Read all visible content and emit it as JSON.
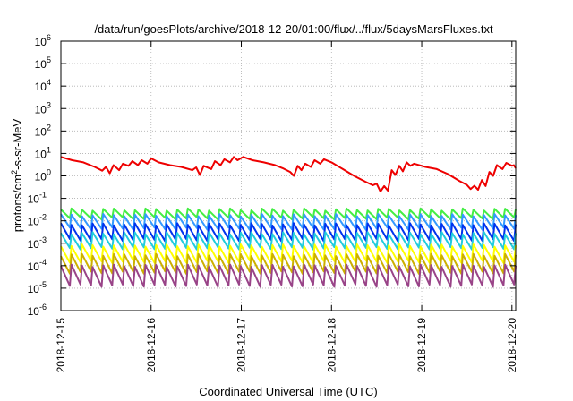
{
  "chart_data": {
    "type": "line",
    "title": "/data/run/goesPlots/archive/2018-12-20/01:00/flux/../flux/5daysMarsFluxes.txt",
    "xlabel": "Coordinated Universal Time (UTC)",
    "ylabel_parts": [
      "protons/cm",
      "2",
      "-s-sr-MeV"
    ],
    "yscale": "log",
    "ylim": [
      1e-06,
      1000000.0
    ],
    "y_ticks": [
      {
        "base": "10",
        "exp": "-6",
        "value": 1e-06
      },
      {
        "base": "10",
        "exp": "-5",
        "value": 1e-05
      },
      {
        "base": "10",
        "exp": "-4",
        "value": 0.0001
      },
      {
        "base": "10",
        "exp": "-3",
        "value": 0.001
      },
      {
        "base": "10",
        "exp": "-2",
        "value": 0.01
      },
      {
        "base": "10",
        "exp": "-1",
        "value": 0.1
      },
      {
        "base": "10",
        "exp": "0",
        "value": 1
      },
      {
        "base": "10",
        "exp": "1",
        "value": 10
      },
      {
        "base": "10",
        "exp": "2",
        "value": 100
      },
      {
        "base": "10",
        "exp": "3",
        "value": 1000
      },
      {
        "base": "10",
        "exp": "4",
        "value": 10000
      },
      {
        "base": "10",
        "exp": "5",
        "value": 100000
      },
      {
        "base": "10",
        "exp": "6",
        "value": 1000000
      }
    ],
    "xlim": [
      "2018-12-15",
      "2018-12-20 01:00"
    ],
    "x_ticks": [
      "2018-12-15",
      "2018-12-16",
      "2018-12-17",
      "2018-12-18",
      "2018-12-19",
      "2018-12-20"
    ],
    "grid": true,
    "series": [
      {
        "color": "#ee0000",
        "points": [
          [
            "2018-12-15 00:00",
            7
          ],
          [
            "2018-12-15 03:00",
            5
          ],
          [
            "2018-12-15 06:00",
            4
          ],
          [
            "2018-12-15 09:00",
            2.5
          ],
          [
            "2018-12-15 11:00",
            1.7
          ],
          [
            "2018-12-15 12:00",
            2.5
          ],
          [
            "2018-12-15 13:00",
            1.3
          ],
          [
            "2018-12-15 14:00",
            3
          ],
          [
            "2018-12-15 15:30",
            1.8
          ],
          [
            "2018-12-15 16:30",
            3.5
          ],
          [
            "2018-12-15 18:00",
            2.8
          ],
          [
            "2018-12-15 19:00",
            4.5
          ],
          [
            "2018-12-15 20:30",
            3
          ],
          [
            "2018-12-15 21:30",
            5
          ],
          [
            "2018-12-15 23:00",
            3.5
          ],
          [
            "2018-12-16 00:00",
            6
          ],
          [
            "2018-12-16 02:00",
            4
          ],
          [
            "2018-12-16 05:00",
            3
          ],
          [
            "2018-12-16 08:00",
            2.5
          ],
          [
            "2018-12-16 11:00",
            1.8
          ],
          [
            "2018-12-16 12:00",
            2.4
          ],
          [
            "2018-12-16 13:00",
            1.1
          ],
          [
            "2018-12-16 14:00",
            2.8
          ],
          [
            "2018-12-16 16:00",
            2.0
          ],
          [
            "2018-12-16 17:00",
            4.5
          ],
          [
            "2018-12-16 18:30",
            3.0
          ],
          [
            "2018-12-16 19:30",
            5.5
          ],
          [
            "2018-12-16 21:00",
            4.0
          ],
          [
            "2018-12-16 22:00",
            7
          ],
          [
            "2018-12-16 23:00",
            5
          ],
          [
            "2018-12-17 00:30",
            7
          ],
          [
            "2018-12-17 03:00",
            5
          ],
          [
            "2018-12-17 06:00",
            4
          ],
          [
            "2018-12-17 09:00",
            3
          ],
          [
            "2018-12-17 11:00",
            2.2
          ],
          [
            "2018-12-17 13:00",
            1.5
          ],
          [
            "2018-12-17 14:00",
            1.0
          ],
          [
            "2018-12-17 15:00",
            2.8
          ],
          [
            "2018-12-17 16:00",
            1.8
          ],
          [
            "2018-12-17 17:00",
            3.5
          ],
          [
            "2018-12-17 18:30",
            2.5
          ],
          [
            "2018-12-17 19:30",
            5.0
          ],
          [
            "2018-12-17 21:00",
            3.5
          ],
          [
            "2018-12-17 22:00",
            5.5
          ],
          [
            "2018-12-18 00:00",
            4
          ],
          [
            "2018-12-18 03:00",
            2
          ],
          [
            "2018-12-18 06:00",
            1
          ],
          [
            "2018-12-18 09:00",
            0.55
          ],
          [
            "2018-12-18 11:00",
            0.38
          ],
          [
            "2018-12-18 12:00",
            0.45
          ],
          [
            "2018-12-18 13:00",
            0.2
          ],
          [
            "2018-12-18 14:00",
            0.35
          ],
          [
            "2018-12-18 15:00",
            0.22
          ],
          [
            "2018-12-18 16:00",
            1.8
          ],
          [
            "2018-12-18 17:00",
            1.1
          ],
          [
            "2018-12-18 18:00",
            2.8
          ],
          [
            "2018-12-18 19:00",
            1.6
          ],
          [
            "2018-12-18 20:00",
            4.0
          ],
          [
            "2018-12-18 21:00",
            2.8
          ],
          [
            "2018-12-18 22:00",
            3.5
          ],
          [
            "2018-12-19 01:00",
            2.5
          ],
          [
            "2018-12-19 04:00",
            2
          ],
          [
            "2018-12-19 07:00",
            1.2
          ],
          [
            "2018-12-19 10:00",
            0.6
          ],
          [
            "2018-12-19 12:00",
            0.4
          ],
          [
            "2018-12-19 13:00",
            0.26
          ],
          [
            "2018-12-19 14:00",
            0.36
          ],
          [
            "2018-12-19 15:00",
            0.24
          ],
          [
            "2018-12-19 16:00",
            0.65
          ],
          [
            "2018-12-19 17:00",
            0.35
          ],
          [
            "2018-12-19 18:00",
            1.5
          ],
          [
            "2018-12-19 19:00",
            1.0
          ],
          [
            "2018-12-19 20:00",
            3.0
          ],
          [
            "2018-12-19 21:30",
            2.0
          ],
          [
            "2018-12-19 22:30",
            3.8
          ],
          [
            "2018-12-20 00:00",
            2.8
          ],
          [
            "2018-12-20 00:30",
            3.0
          ],
          [
            "2018-12-20 01:00",
            2.2
          ]
        ]
      }
    ],
    "periodic_series": [
      {
        "color": "#44ee44",
        "peak": 0.032,
        "trough": 0.013
      },
      {
        "color": "#3399ff",
        "peak": 0.018,
        "trough": 0.0045
      },
      {
        "color": "#0033ee",
        "peak": 0.007,
        "trough": 0.0014
      },
      {
        "color": "#22ccdd",
        "peak": 0.0028,
        "trough": 0.0006
      },
      {
        "color": "#ffff00",
        "peak": 0.0008,
        "trough": 0.00015
      },
      {
        "color": "#ccb000",
        "peak": 0.0003,
        "trough": 5e-05
      },
      {
        "color": "#994488",
        "peak": 0.0001,
        "trough": 1.3e-05
      }
    ],
    "periodic_cycles": 43
  }
}
